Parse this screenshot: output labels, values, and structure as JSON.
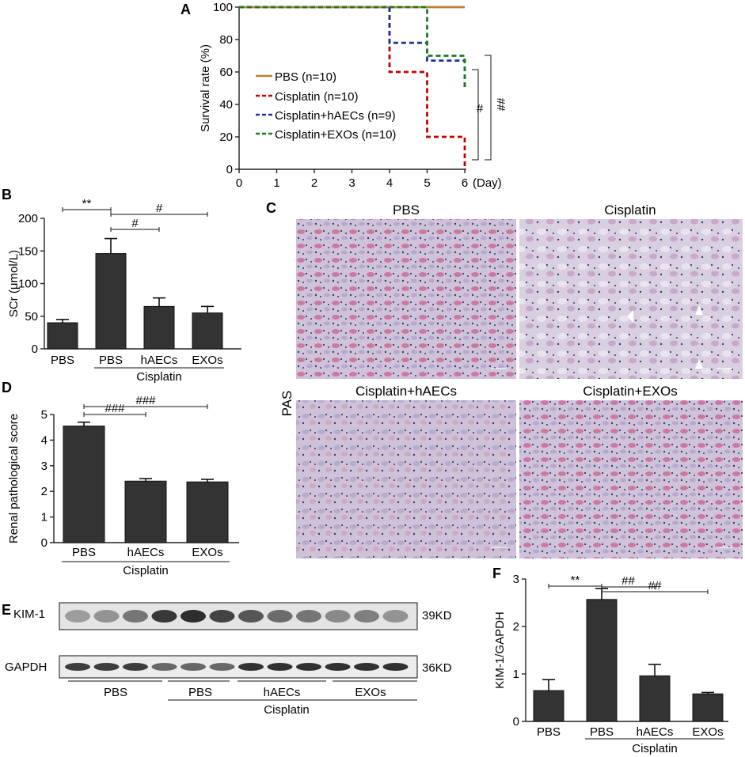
{
  "panels": {
    "A": "A",
    "B": "B",
    "C": "C",
    "D": "D",
    "E": "E",
    "F": "F"
  },
  "chart_data": [
    {
      "id": "A",
      "type": "line",
      "xlabel": "(Day)",
      "ylabel": "Survival rate (%)",
      "xlim": [
        0,
        6
      ],
      "ylim": [
        0,
        100
      ],
      "xticks": [
        "0",
        "1",
        "2",
        "3",
        "4",
        "5",
        "6"
      ],
      "yticks": [
        "0",
        "20",
        "40",
        "60",
        "80",
        "100"
      ],
      "legend_position": "center-left",
      "series": [
        {
          "name": "PBS (n=10)",
          "color": "#b8823a",
          "x": [
            0,
            6
          ],
          "y": [
            100,
            100
          ]
        },
        {
          "name": "Cisplatin (n=10)",
          "color": "#c00000",
          "x": [
            0,
            4,
            4,
            5,
            5,
            6,
            6
          ],
          "y": [
            100,
            100,
            60,
            60,
            20,
            20,
            0
          ]
        },
        {
          "name": "Cisplatin+hAECs (n=9)",
          "color": "#1b2fa0",
          "x": [
            0,
            4,
            4,
            5,
            5,
            6,
            6
          ],
          "y": [
            100,
            100,
            78,
            78,
            67,
            67,
            50
          ]
        },
        {
          "name": "Cisplatin+EXOs (n=10)",
          "color": "#1e7a2a",
          "x": [
            0,
            5,
            5,
            6,
            6
          ],
          "y": [
            100,
            100,
            70,
            70,
            50
          ]
        }
      ],
      "annotations": [
        "#",
        "##"
      ]
    },
    {
      "id": "B",
      "type": "bar",
      "ylabel": "SCr (μmol/L)",
      "ylim": [
        0,
        200
      ],
      "yticks": [
        "0",
        "50",
        "100",
        "150",
        "200"
      ],
      "categories": [
        "PBS",
        "PBS",
        "hAECs",
        "EXOs"
      ],
      "group_label": "Cisplatin",
      "values": [
        40,
        146,
        65,
        55
      ],
      "errors": [
        5,
        23,
        13,
        10
      ],
      "annotations": [
        "**",
        "#",
        "#"
      ]
    },
    {
      "id": "D",
      "type": "bar",
      "ylabel": "Renal pathological score",
      "ylim": [
        0,
        5
      ],
      "yticks": [
        "0",
        "1",
        "2",
        "3",
        "4",
        "5"
      ],
      "categories": [
        "PBS",
        "hAECs",
        "EXOs"
      ],
      "group_label": "Cisplatin",
      "values": [
        4.55,
        2.4,
        2.37
      ],
      "errors": [
        0.15,
        0.1,
        0.1
      ],
      "annotations": [
        "###",
        "###"
      ]
    },
    {
      "id": "F",
      "type": "bar",
      "ylabel": "KIM-1/GAPDH",
      "ylim": [
        0,
        3
      ],
      "yticks": [
        "0",
        "1",
        "2",
        "3"
      ],
      "categories": [
        "PBS",
        "PBS",
        "hAECs",
        "EXOs"
      ],
      "group_label": "Cisplatin",
      "values": [
        0.65,
        2.57,
        0.96,
        0.58
      ],
      "errors": [
        0.23,
        0.23,
        0.24,
        0.03
      ],
      "annotations": [
        "**",
        "##",
        "##"
      ]
    }
  ],
  "histology": {
    "stain": "PAS",
    "titles": [
      "PBS",
      "Cisplatin",
      "Cisplatin+hAECs",
      "Cisplatin+EXOs"
    ]
  },
  "blot": {
    "rows": [
      {
        "label": "KIM-1",
        "size": "39KD"
      },
      {
        "label": "GAPDH",
        "size": "36KD"
      }
    ],
    "groups": [
      "PBS",
      "PBS",
      "hAECs",
      "EXOs"
    ],
    "group_label": "Cisplatin"
  }
}
